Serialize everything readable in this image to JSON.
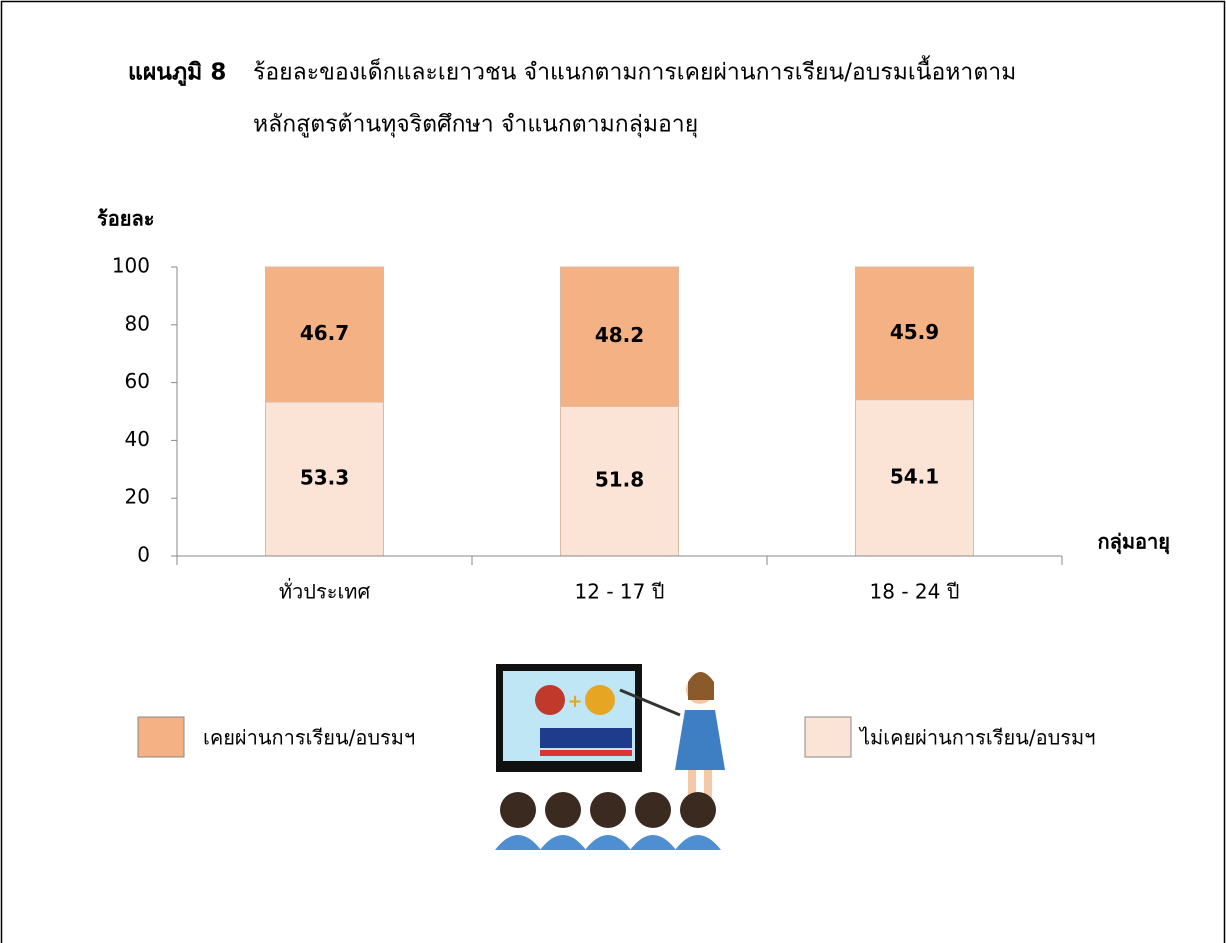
{
  "chart_data": {
    "type": "stacked_bar",
    "title_number": "แผนภูมิ 8",
    "title_lines": [
      "ร้อยละของเด็กและเยาวชน จำแนกตามการเคยผ่านการเรียน/อบรมเนื้อหาตาม",
      "หลักสูตรต้านทุจริตศึกษา  จำแนกตามกลุ่มอายุ"
    ],
    "y_label": "ร้อยละ",
    "x_label": "กลุ่มอายุ",
    "categories": [
      "ทั่วประเทศ",
      "12 - 17 ปี",
      "18 - 24 ปี"
    ],
    "series": [
      {
        "name": "ไม่เคยผ่านการเรียน/อบรมฯ",
        "color": "#fbe3d6",
        "values": [
          53.3,
          51.8,
          54.1
        ]
      },
      {
        "name": "เคยผ่านการเรียน/อบรมฯ",
        "color": "#f4b183",
        "values": [
          46.7,
          48.2,
          45.9
        ]
      }
    ],
    "ylim": [
      0,
      100
    ],
    "yticks": [
      0,
      20,
      40,
      60,
      80,
      100
    ],
    "grid": false
  }
}
